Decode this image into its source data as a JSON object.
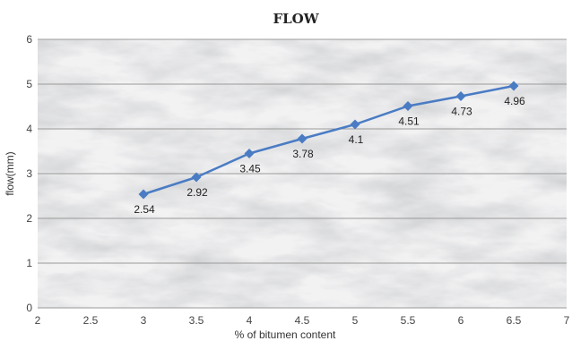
{
  "chart_data": {
    "type": "line",
    "title": "FLOW",
    "xlabel": "% of bitumen content",
    "ylabel": "flow(mm)",
    "xlim": [
      2,
      7
    ],
    "ylim": [
      0,
      6
    ],
    "x_ticks": [
      "2",
      "2.5",
      "3",
      "3.5",
      "4",
      "4.5",
      "5",
      "5.5",
      "6",
      "6.5",
      "7"
    ],
    "y_ticks": [
      "0",
      "1",
      "2",
      "3",
      "4",
      "5",
      "6"
    ],
    "grid": true,
    "legend": "none",
    "background": "marble texture",
    "series": [
      {
        "color": "#4a7cc4",
        "marker": "diamond",
        "x": [
          3,
          3.5,
          4,
          4.5,
          5,
          5.5,
          6,
          6.5
        ],
        "y": [
          2.54,
          2.92,
          3.45,
          3.78,
          4.1,
          4.51,
          4.73,
          4.96
        ],
        "data_labels": [
          "2.54",
          "2.92",
          "3.45",
          "3.78",
          "4.1",
          "4.51",
          "4.73",
          "4.96"
        ]
      }
    ]
  }
}
